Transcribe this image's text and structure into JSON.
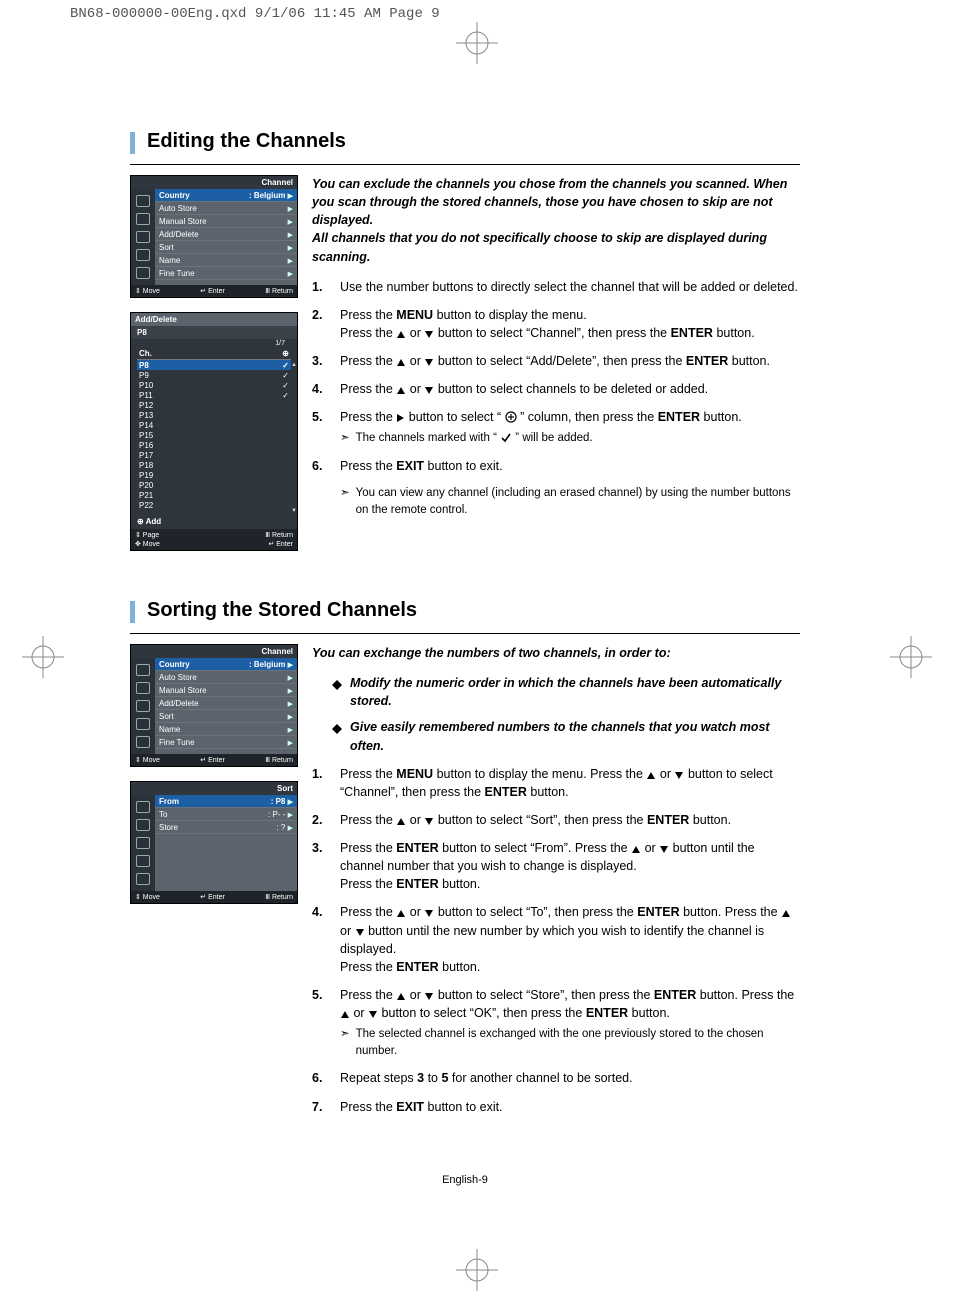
{
  "print_header": "BN68-000000-00Eng.qxd  9/1/06 11:45 AM  Page 9",
  "page_footer": "English-9",
  "section1": {
    "title": "Editing the Channels",
    "intro": "You can exclude the channels you chose from the channels you scanned.   When you scan through the stored channels, those you have chosen to skip are not displayed.\nAll channels that you do not specifically choose to skip are displayed during scanning.",
    "steps": [
      {
        "num": "1.",
        "body": "Use the number buttons to directly select the channel that will be added or deleted."
      },
      {
        "num": "2.",
        "body_parts": [
          "Press the ",
          {
            "b": "MENU"
          },
          " button to display the menu.\nPress the ",
          {
            "g": "up"
          },
          " or ",
          {
            "g": "down"
          },
          " button to select “Channel”, then press the ",
          {
            "b": "ENTER"
          },
          " button."
        ]
      },
      {
        "num": "3.",
        "body_parts": [
          "Press the ",
          {
            "g": "up"
          },
          " or ",
          {
            "g": "down"
          },
          " button to select “Add/Delete”, then press the ",
          {
            "b": "ENTER"
          },
          " button."
        ]
      },
      {
        "num": "4.",
        "body_parts": [
          "Press the ",
          {
            "g": "up"
          },
          " or ",
          {
            "g": "down"
          },
          " button to select channels to be deleted or added."
        ]
      },
      {
        "num": "5.",
        "body_parts": [
          "Press the ",
          {
            "g": "right"
          },
          " button to select “ ",
          {
            "g": "plus"
          },
          " ” column, then press the ",
          {
            "b": "ENTER"
          },
          " button."
        ],
        "sub": [
          "The channels marked with “ ",
          {
            "g": "check"
          },
          " ” will be added."
        ]
      },
      {
        "num": "6.",
        "body_parts": [
          "Press the ",
          {
            "b": "EXIT"
          },
          " button to exit."
        ]
      }
    ],
    "note": "You can view any channel (including an erased channel) by using the number buttons on the remote control.",
    "osd_channel": {
      "title": "Channel",
      "rows": [
        {
          "label": "Country",
          "value": ": Belgium",
          "hi": true
        },
        {
          "label": "Auto Store"
        },
        {
          "label": "Manual Store"
        },
        {
          "label": "Add/Delete"
        },
        {
          "label": "Sort"
        },
        {
          "label": "Name"
        },
        {
          "label": "Fine Tune"
        }
      ],
      "foot_left": "Move",
      "foot_mid": "Enter",
      "foot_right": "Return"
    },
    "osd_adddelete": {
      "title": "Add/Delete",
      "sub": "P8",
      "page": "1/7",
      "head_left": "Ch.",
      "head_right": "⊕",
      "rows": [
        {
          "ch": "P8",
          "ck": true,
          "hi": true
        },
        {
          "ch": "P9",
          "ck": true
        },
        {
          "ch": "P10",
          "ck": true
        },
        {
          "ch": "P11",
          "ck": true
        },
        {
          "ch": "P12"
        },
        {
          "ch": "P13"
        },
        {
          "ch": "P14"
        },
        {
          "ch": "P15"
        },
        {
          "ch": "P16"
        },
        {
          "ch": "P17"
        },
        {
          "ch": "P18"
        },
        {
          "ch": "P19"
        },
        {
          "ch": "P20"
        },
        {
          "ch": "P21"
        },
        {
          "ch": "P22"
        }
      ],
      "add_label": "⊕ Add",
      "foot": {
        "page": "Page",
        "ret": "Return",
        "move": "Move",
        "enter": "Enter"
      }
    }
  },
  "section2": {
    "title": "Sorting the Stored Channels",
    "intro": "You can exchange the numbers of two channels, in order to:",
    "diamonds": [
      "Modify the numeric order in which the channels have been automatically stored.",
      "Give easily remembered numbers to the channels that you watch most often."
    ],
    "steps": [
      {
        "num": "1.",
        "body_parts": [
          "Press the ",
          {
            "b": "MENU"
          },
          " button to display the menu. Press the ",
          {
            "g": "up"
          },
          " or ",
          {
            "g": "down"
          },
          " button to select “Channel”, then press the ",
          {
            "b": "ENTER"
          },
          " button."
        ]
      },
      {
        "num": "2.",
        "body_parts": [
          "Press the ",
          {
            "g": "up"
          },
          " or ",
          {
            "g": "down"
          },
          " button to select “Sort”, then press the ",
          {
            "b": "ENTER"
          },
          " button."
        ]
      },
      {
        "num": "3.",
        "body_parts": [
          "Press the ",
          {
            "b": "ENTER"
          },
          " button to select “From”. Press the ",
          {
            "g": "up"
          },
          " or ",
          {
            "g": "down"
          },
          " button until the channel number that you wish to change is displayed.\nPress the ",
          {
            "b": "ENTER"
          },
          " button."
        ]
      },
      {
        "num": "4.",
        "body_parts": [
          "Press the ",
          {
            "g": "up"
          },
          " or ",
          {
            "g": "down"
          },
          " button to select “To”, then press the ",
          {
            "b": "ENTER"
          },
          " button. Press the ",
          {
            "g": "up"
          },
          " or ",
          {
            "g": "down"
          },
          " button until the new number by which you wish to identify the channel is displayed.\nPress the ",
          {
            "b": "ENTER"
          },
          " button."
        ]
      },
      {
        "num": "5.",
        "body_parts": [
          "Press the ",
          {
            "g": "up"
          },
          " or ",
          {
            "g": "down"
          },
          " button to select “Store”, then press the ",
          {
            "b": "ENTER"
          },
          " button. Press the ",
          {
            "g": "up"
          },
          " or ",
          {
            "g": "down"
          },
          " button to select “OK”, then press the ",
          {
            "b": "ENTER"
          },
          " button."
        ],
        "sub": [
          "The selected channel is exchanged with the one previously stored to the chosen number."
        ]
      },
      {
        "num": "6.",
        "body_parts": [
          "Repeat steps ",
          {
            "b": "3"
          },
          " to ",
          {
            "b": "5"
          },
          " for another channel to be sorted."
        ]
      },
      {
        "num": "7.",
        "body_parts": [
          "Press the ",
          {
            "b": "EXIT"
          },
          " button to exit."
        ]
      }
    ],
    "osd_channel": {
      "title": "Channel",
      "rows": [
        {
          "label": "Country",
          "value": ": Belgium",
          "hi": true
        },
        {
          "label": "Auto Store"
        },
        {
          "label": "Manual Store"
        },
        {
          "label": "Add/Delete"
        },
        {
          "label": "Sort"
        },
        {
          "label": "Name"
        },
        {
          "label": "Fine Tune"
        }
      ],
      "foot_left": "Move",
      "foot_mid": "Enter",
      "foot_right": "Return"
    },
    "osd_sort": {
      "title": "Sort",
      "rows": [
        {
          "label": "From",
          "value": ": P8",
          "hi": true
        },
        {
          "label": "To",
          "value": ": P- -"
        },
        {
          "label": "Store",
          "value": ": ?"
        }
      ],
      "foot_left": "Move",
      "foot_mid": "Enter",
      "foot_right": "Return"
    }
  }
}
